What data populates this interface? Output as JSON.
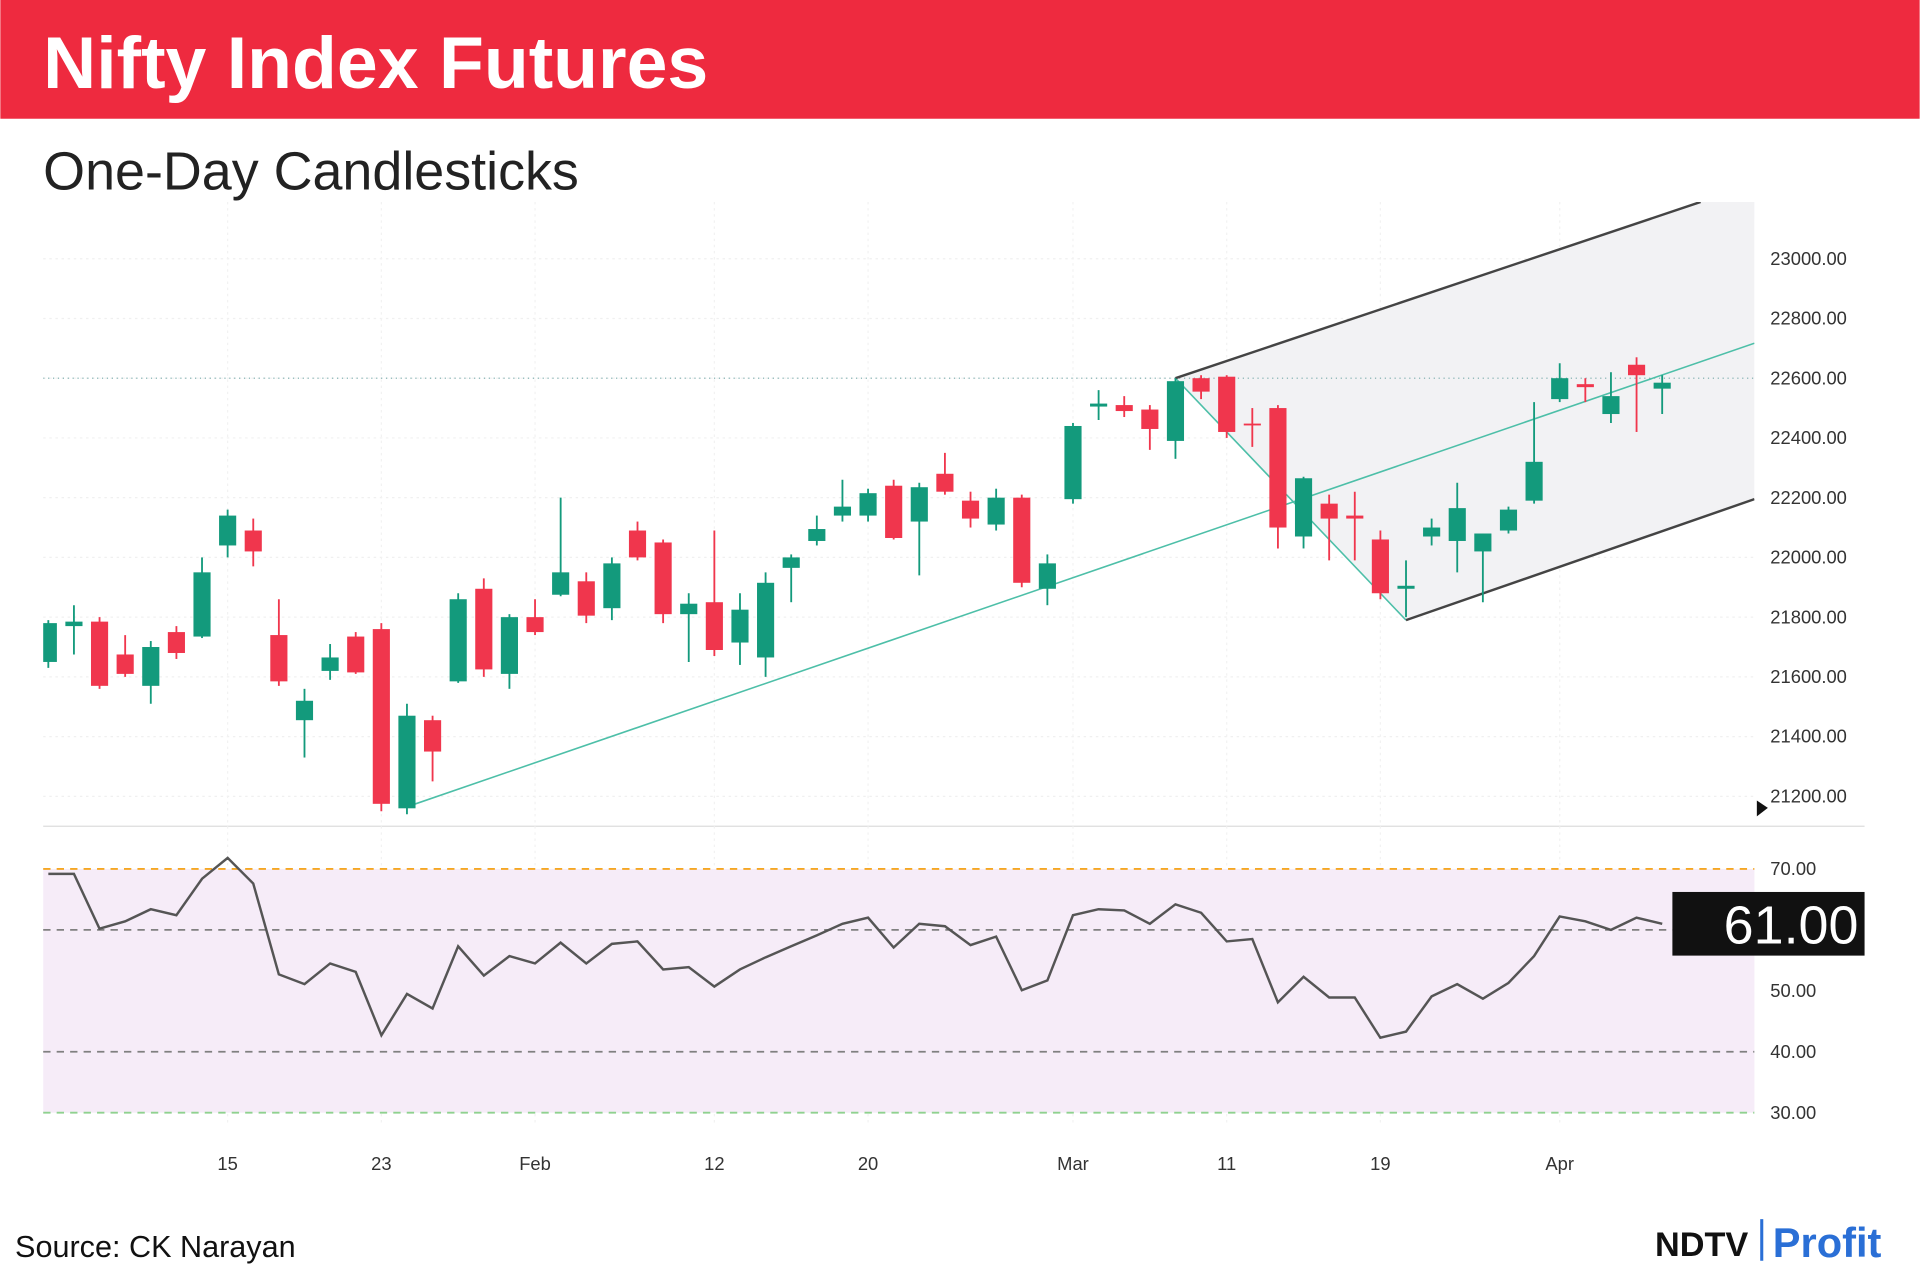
{
  "chart_data": [
    {
      "type": "candlestick",
      "title": "Nifty Index Futures",
      "subtitle": "One-Day Candlesticks",
      "categories": [
        null,
        null,
        null,
        null,
        null,
        null,
        null,
        "15",
        null,
        null,
        null,
        null,
        null,
        "23",
        null,
        null,
        null,
        null,
        null,
        "Feb",
        null,
        null,
        null,
        null,
        null,
        null,
        "12",
        null,
        null,
        null,
        null,
        null,
        "20",
        null,
        null,
        null,
        null,
        null,
        null,
        null,
        "Mar",
        null,
        null,
        null,
        null,
        null,
        "11",
        null,
        null,
        null,
        null,
        null,
        "19",
        null,
        null,
        null,
        null,
        null,
        null,
        "Apr",
        null,
        null,
        null,
        null
      ],
      "open": [
        21650,
        21770,
        21785,
        21675,
        21570,
        21750,
        21735,
        22040,
        22090,
        21740,
        21455,
        21620,
        21735,
        21760,
        21160,
        21455,
        21585,
        21895,
        21610,
        21800,
        21875,
        21920,
        21830,
        22090,
        22050,
        21810,
        21850,
        21715,
        21665,
        21965,
        22055,
        22140,
        22140,
        22240,
        22120,
        22280,
        22190,
        22110,
        22200,
        21895,
        22195,
        22505,
        22510,
        22495,
        22390,
        22600,
        22605,
        22448,
        22500,
        22070,
        22180,
        22140,
        22060,
        21895,
        22070,
        22055,
        22020,
        22090,
        22190,
        22530,
        22580,
        22480,
        22645,
        22565
      ],
      "high": [
        21790,
        21840,
        21800,
        21740,
        21720,
        21770,
        22000,
        22160,
        22130,
        21860,
        21560,
        21710,
        21750,
        21780,
        21510,
        21470,
        21880,
        21930,
        21810,
        21860,
        22200,
        21950,
        22000,
        22120,
        22060,
        21880,
        22090,
        21880,
        21950,
        22010,
        22140,
        22260,
        22230,
        22260,
        22250,
        22350,
        22220,
        22230,
        22210,
        22010,
        22450,
        22560,
        22540,
        22510,
        22600,
        22610,
        22610,
        22500,
        22510,
        22270,
        22210,
        22220,
        22090,
        21990,
        22130,
        22250,
        22080,
        22170,
        22520,
        22650,
        22600,
        22620,
        22670,
        22610
      ],
      "low": [
        21630,
        21675,
        21560,
        21600,
        21510,
        21660,
        21730,
        22000,
        21970,
        21570,
        21330,
        21590,
        21610,
        21150,
        21140,
        21250,
        21580,
        21600,
        21560,
        21740,
        21870,
        21780,
        21790,
        21990,
        21780,
        21650,
        21670,
        21640,
        21600,
        21850,
        22040,
        22120,
        22120,
        22060,
        21940,
        22210,
        22100,
        22090,
        21900,
        21840,
        22180,
        22460,
        22470,
        22360,
        22330,
        22530,
        22400,
        22370,
        22030,
        22030,
        21990,
        21990,
        21860,
        21800,
        22040,
        21950,
        21850,
        22080,
        22180,
        22520,
        22520,
        22450,
        22420,
        22480
      ],
      "close": [
        21780,
        21785,
        21570,
        21610,
        21700,
        21680,
        21950,
        22140,
        22020,
        21585,
        21520,
        21665,
        21615,
        21175,
        21470,
        21350,
        21860,
        21625,
        21800,
        21750,
        21950,
        21805,
        21980,
        22000,
        21810,
        21845,
        21690,
        21825,
        21915,
        22000,
        22095,
        22170,
        22215,
        22065,
        22235,
        22220,
        22130,
        22200,
        21915,
        21980,
        22440,
        22515,
        22490,
        22430,
        22590,
        22555,
        22420,
        22443,
        22100,
        22265,
        22130,
        22130,
        21880,
        21905,
        22100,
        22165,
        22080,
        22160,
        22320,
        22600,
        22570,
        22540,
        22610,
        22585
      ],
      "up_color": "#139a7c",
      "down_color": "#f0364d",
      "xlim": [
        -0.2,
        66.6
      ],
      "ylim": [
        21100,
        23190
      ],
      "yticks": [
        {
          "value": 21200,
          "label": "21200.00"
        },
        {
          "value": 21400,
          "label": "21400.00"
        },
        {
          "value": 21600,
          "label": "21600.00"
        },
        {
          "value": 21800,
          "label": "21800.00"
        },
        {
          "value": 22000,
          "label": "22000.00"
        },
        {
          "value": 22200,
          "label": "22200.00"
        },
        {
          "value": 22400,
          "label": "22400.00"
        },
        {
          "value": 22600,
          "label": "22600.00"
        },
        {
          "value": 22800,
          "label": "22800.00"
        },
        {
          "value": 23000,
          "label": "23000.00"
        }
      ],
      "grid": true,
      "hline": 22600,
      "lines": [
        {
          "x": [
            14,
            66.6
          ],
          "y": [
            21165,
            22717
          ],
          "color": "#4dbfa8"
        },
        {
          "x": [
            44,
            53
          ],
          "y": [
            22600,
            21790
          ],
          "color": "#4dbfa8"
        },
        {
          "x": [
            44,
            64.5
          ],
          "y": [
            22600,
            23190
          ],
          "color": "#444444"
        },
        {
          "x": [
            53,
            66.6
          ],
          "y": [
            21790,
            22195
          ],
          "color": "#444444"
        }
      ]
    },
    {
      "type": "line",
      "series": [
        {
          "color": "#555555",
          "values": [
            69.2,
            69.2,
            60.2,
            61.4,
            63.4,
            62.4,
            68.4,
            71.8,
            67.6,
            52.7,
            51.1,
            54.5,
            53.1,
            42.7,
            49.5,
            47.1,
            57.3,
            52.5,
            55.7,
            54.5,
            57.9,
            54.5,
            57.7,
            58.1,
            53.5,
            53.9,
            50.7,
            53.5,
            55.5,
            57.3,
            59.1,
            61.0,
            62.0,
            57.1,
            61.0,
            60.6,
            57.5,
            58.9,
            50.1,
            51.7,
            62.4,
            63.4,
            63.2,
            61.0,
            64.2,
            62.8,
            58.1,
            58.5,
            48.1,
            52.3,
            48.9,
            48.9,
            42.3,
            43.3,
            49.1,
            51.1,
            48.7,
            51.3,
            55.7,
            62.2,
            61.4,
            60.0,
            62.0,
            61.0
          ],
          "value_labels": [
            null,
            null,
            null,
            null,
            null,
            null,
            null,
            null,
            null,
            null,
            null,
            null,
            null,
            null,
            null,
            null,
            null,
            null,
            null,
            null,
            null,
            null,
            null,
            null,
            null,
            null,
            null,
            null,
            null,
            null,
            null,
            null,
            null,
            null,
            null,
            null,
            null,
            null,
            null,
            null,
            null,
            null,
            null,
            null,
            null,
            null,
            null,
            null,
            null,
            null,
            null,
            null,
            null,
            null,
            null,
            null,
            null,
            null,
            null,
            null,
            null,
            null,
            null,
            "61.00"
          ]
        }
      ],
      "ylim": [
        27.8,
        75
      ],
      "yticks": [
        {
          "value": 30,
          "label": "30.00"
        },
        {
          "value": 40,
          "label": "40.00"
        },
        {
          "value": 50,
          "label": "50.00"
        },
        {
          "value": 70,
          "label": "70.00"
        }
      ],
      "band": [
        30,
        70
      ],
      "band_color": "#f6ecf8",
      "levels": [
        {
          "value": 70,
          "color": "#f5a623"
        },
        {
          "value": 60,
          "color": "#808080"
        },
        {
          "value": 40,
          "color": "#808080"
        },
        {
          "value": 30,
          "color": "#8fd18f"
        }
      ]
    }
  ],
  "footer": {
    "source": "Source: CK Narayan",
    "brand": [
      "NDTV",
      "Profit"
    ]
  }
}
